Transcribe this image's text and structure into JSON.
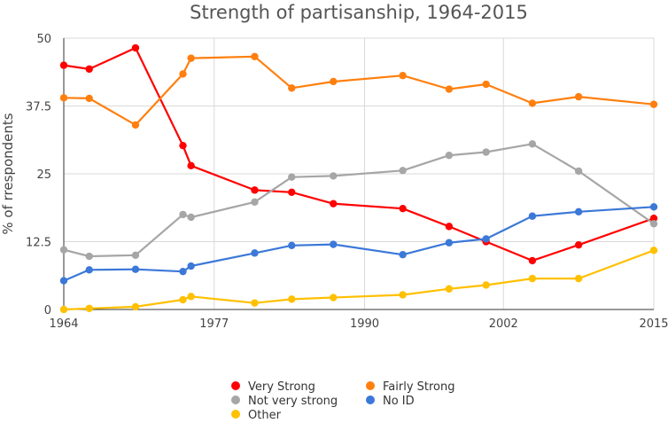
{
  "chart_data": {
    "type": "line",
    "title": "Strength of partisanship, 1964-2015",
    "xlabel": "",
    "ylabel": "% of rrespondents",
    "xlim": [
      1964,
      2015
    ],
    "ylim": [
      0,
      50
    ],
    "x_ticks": [
      "1964",
      "1977",
      "1990",
      "2002",
      "2015"
    ],
    "y_ticks": [
      "0",
      "12.5",
      "25",
      "37.5",
      "50"
    ],
    "grid": true,
    "legend_position": "bottom",
    "series": [
      {
        "name": "Very Strong",
        "color": "#ff0000",
        "points": [
          [
            1964,
            45
          ],
          [
            1966.2,
            44.3
          ],
          [
            1970.2,
            48.2
          ],
          [
            1974.3,
            30.2
          ],
          [
            1975,
            26.5
          ],
          [
            1980.5,
            22
          ],
          [
            1983.7,
            21.6
          ],
          [
            1987.3,
            19.5
          ],
          [
            1993.3,
            18.6
          ],
          [
            1997.3,
            15.3
          ],
          [
            2000.5,
            12.5
          ],
          [
            2004.5,
            9
          ],
          [
            2008.5,
            11.9
          ],
          [
            2015,
            16.8
          ]
        ]
      },
      {
        "name": "Fairly Strong",
        "color": "#ff7f0e",
        "points": [
          [
            1964,
            39
          ],
          [
            1966.2,
            38.9
          ],
          [
            1970.2,
            34
          ],
          [
            1974.3,
            43.4
          ],
          [
            1975,
            46.3
          ],
          [
            1980.5,
            46.6
          ],
          [
            1983.7,
            40.8
          ],
          [
            1987.3,
            42
          ],
          [
            1993.3,
            43.1
          ],
          [
            1997.3,
            40.6
          ],
          [
            2000.5,
            41.5
          ],
          [
            2004.5,
            38
          ],
          [
            2008.5,
            39.2
          ],
          [
            2015,
            37.8
          ]
        ]
      },
      {
        "name": "Not very strong",
        "color": "#a6a6a6",
        "points": [
          [
            1964,
            11
          ],
          [
            1966.2,
            9.8
          ],
          [
            1970.2,
            10
          ],
          [
            1974.3,
            17.5
          ],
          [
            1975,
            17
          ],
          [
            1980.5,
            19.8
          ],
          [
            1983.7,
            24.4
          ],
          [
            1987.3,
            24.6
          ],
          [
            1993.3,
            25.6
          ],
          [
            1997.3,
            28.4
          ],
          [
            2000.5,
            29
          ],
          [
            2004.5,
            30.5
          ],
          [
            2008.5,
            25.5
          ],
          [
            2015,
            15.8
          ]
        ]
      },
      {
        "name": "No ID",
        "color": "#3b78d8",
        "points": [
          [
            1964,
            5.3
          ],
          [
            1966.2,
            7.3
          ],
          [
            1970.2,
            7.4
          ],
          [
            1974.3,
            7
          ],
          [
            1975,
            8
          ],
          [
            1980.5,
            10.4
          ],
          [
            1983.7,
            11.8
          ],
          [
            1987.3,
            12
          ],
          [
            1993.3,
            10.1
          ],
          [
            1997.3,
            12.3
          ],
          [
            2000.5,
            13
          ],
          [
            2004.5,
            17.2
          ],
          [
            2008.5,
            18
          ],
          [
            2015,
            18.9
          ]
        ]
      },
      {
        "name": "Other",
        "color": "#ffc000",
        "points": [
          [
            1964,
            0
          ],
          [
            1966.2,
            0.2
          ],
          [
            1970.2,
            0.5
          ],
          [
            1974.3,
            1.8
          ],
          [
            1975,
            2.4
          ],
          [
            1980.5,
            1.2
          ],
          [
            1983.7,
            1.9
          ],
          [
            1987.3,
            2.2
          ],
          [
            1993.3,
            2.7
          ],
          [
            1997.3,
            3.8
          ],
          [
            2000.5,
            4.5
          ],
          [
            2004.5,
            5.7
          ],
          [
            2008.5,
            5.7
          ],
          [
            2015,
            10.9
          ]
        ]
      }
    ]
  }
}
